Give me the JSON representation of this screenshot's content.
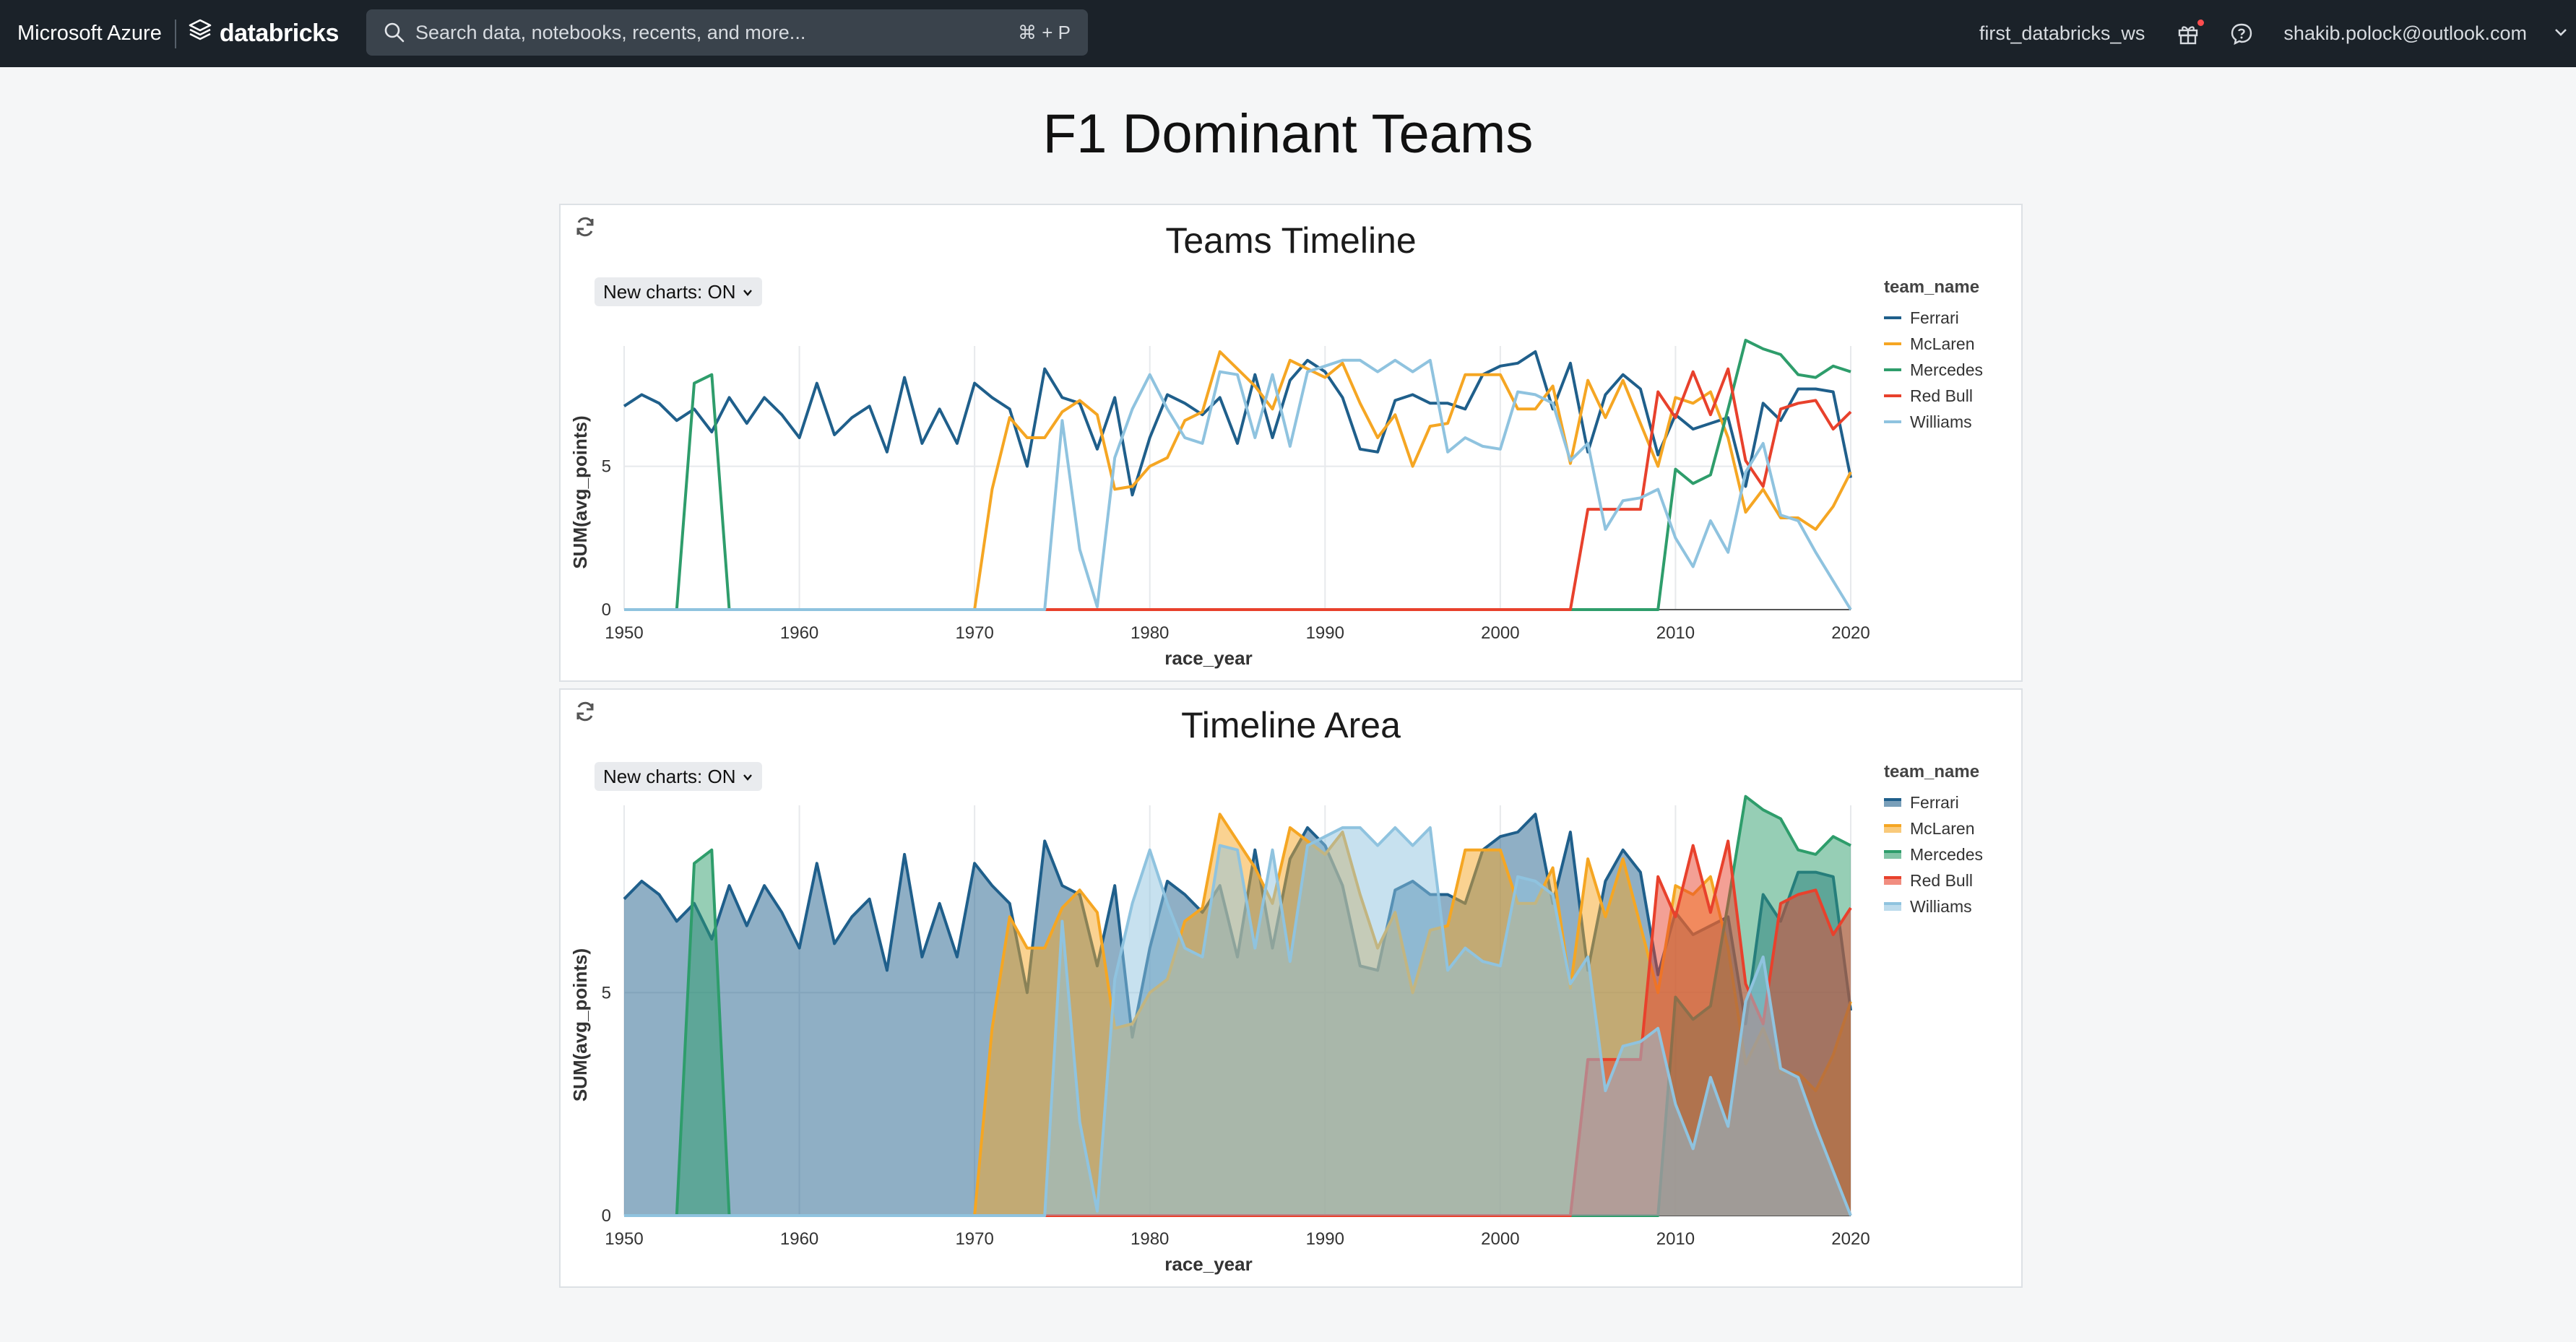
{
  "topbar": {
    "cloud": "Microsoft Azure",
    "product": "databricks",
    "search_placeholder": "Search data, notebooks, recents, and more...",
    "search_shortcut": "⌘ + P",
    "workspace": "first_databricks_ws",
    "user": "shakib.polock@outlook.com",
    "icons": [
      "stack-logo-icon",
      "search-icon",
      "gift-icon",
      "help-chat-icon",
      "chevron-down-icon"
    ]
  },
  "dashboard": {
    "title": "F1 Dominant Teams"
  },
  "widgets": [
    {
      "title": "Teams Timeline",
      "toggle": "New charts: ON"
    },
    {
      "title": "Timeline Area",
      "toggle": "New charts: ON"
    }
  ],
  "colors": {
    "Ferrari": "#1f5f8b",
    "McLaren": "#f5a623",
    "Mercedes": "#2e9d6b",
    "Red Bull": "#e8412c",
    "Williams": "#8fc3df"
  },
  "chart_data": [
    {
      "type": "line",
      "title": "Teams Timeline",
      "xlabel": "race_year",
      "ylabel": "SUM(avg_points)",
      "xlim": [
        1950,
        2020
      ],
      "ylim": [
        0,
        9.2
      ],
      "xticks": [
        "1950",
        "1960",
        "1970",
        "1980",
        "1990",
        "2000",
        "2010",
        "2020"
      ],
      "yticks": [
        "0",
        "5"
      ],
      "legend_title": "team_name",
      "legend_position": "right",
      "grid": true,
      "series": [
        {
          "name": "Ferrari",
          "x": [
            1950,
            1951,
            1952,
            1953,
            1954,
            1955,
            1956,
            1957,
            1958,
            1959,
            1960,
            1961,
            1962,
            1963,
            1964,
            1965,
            1966,
            1967,
            1968,
            1969,
            1970,
            1971,
            1972,
            1973,
            1974,
            1975,
            1976,
            1977,
            1978,
            1979,
            1980,
            1981,
            1982,
            1983,
            1984,
            1985,
            1986,
            1987,
            1988,
            1989,
            1990,
            1991,
            1992,
            1993,
            1994,
            1995,
            1996,
            1997,
            1998,
            1999,
            2000,
            2001,
            2002,
            2003,
            2004,
            2005,
            2006,
            2007,
            2008,
            2009,
            2010,
            2011,
            2012,
            2013,
            2014,
            2015,
            2016,
            2017,
            2018,
            2019,
            2020
          ],
          "values": [
            7.1,
            7.5,
            7.2,
            6.6,
            7.0,
            6.2,
            7.4,
            6.5,
            7.4,
            6.8,
            6.0,
            7.9,
            6.1,
            6.7,
            7.1,
            5.5,
            8.1,
            5.8,
            7.0,
            5.8,
            7.9,
            7.4,
            7.0,
            5.0,
            8.4,
            7.4,
            7.2,
            5.6,
            7.4,
            4.0,
            6.0,
            7.5,
            7.2,
            6.8,
            7.4,
            5.8,
            8.2,
            6.0,
            8.0,
            8.7,
            8.3,
            7.4,
            5.6,
            5.5,
            7.3,
            7.5,
            7.2,
            7.2,
            7.0,
            8.2,
            8.5,
            8.6,
            9.0,
            7.0,
            8.6,
            5.5,
            7.5,
            8.2,
            7.7,
            5.4,
            6.8,
            6.3,
            6.5,
            6.7,
            4.3,
            7.2,
            6.6,
            7.7,
            7.7,
            7.6,
            4.6
          ]
        },
        {
          "name": "McLaren",
          "x": [
            1950,
            1951,
            1952,
            1953,
            1954,
            1955,
            1956,
            1957,
            1958,
            1959,
            1960,
            1961,
            1962,
            1963,
            1964,
            1965,
            1966,
            1967,
            1968,
            1969,
            1970,
            1971,
            1972,
            1973,
            1974,
            1975,
            1976,
            1977,
            1978,
            1979,
            1980,
            1981,
            1982,
            1983,
            1984,
            1985,
            1986,
            1987,
            1988,
            1989,
            1990,
            1991,
            1992,
            1993,
            1994,
            1995,
            1996,
            1997,
            1998,
            1999,
            2000,
            2001,
            2002,
            2003,
            2004,
            2005,
            2006,
            2007,
            2008,
            2009,
            2010,
            2011,
            2012,
            2013,
            2014,
            2015,
            2016,
            2017,
            2018,
            2019,
            2020
          ],
          "values": [
            0,
            0,
            0,
            0,
            0,
            0,
            0,
            0,
            0,
            0,
            0,
            0,
            0,
            0,
            0,
            0,
            0,
            0,
            0,
            0,
            0,
            4.2,
            6.7,
            6.0,
            6.0,
            6.9,
            7.3,
            6.8,
            4.2,
            4.3,
            5.0,
            5.3,
            6.6,
            6.9,
            9.0,
            8.4,
            7.8,
            7.0,
            8.7,
            8.4,
            8.1,
            8.6,
            7.2,
            6.0,
            6.8,
            5.0,
            6.4,
            6.5,
            8.2,
            8.2,
            8.2,
            7.0,
            7.0,
            7.8,
            5.1,
            8.0,
            6.7,
            8.0,
            6.5,
            5.0,
            7.4,
            7.2,
            7.6,
            6.0,
            3.4,
            4.2,
            3.2,
            3.2,
            2.8,
            3.6,
            4.8
          ]
        },
        {
          "name": "Mercedes",
          "x": [
            1950,
            1951,
            1952,
            1953,
            1954,
            1955,
            1956,
            1957,
            1958,
            1959,
            1960,
            1961,
            1962,
            1963,
            1964,
            1965,
            1966,
            1967,
            1968,
            1969,
            1970,
            1971,
            1972,
            1973,
            1974,
            1975,
            1976,
            1977,
            1978,
            1979,
            1980,
            1981,
            1982,
            1983,
            1984,
            1985,
            1986,
            1987,
            1988,
            1989,
            1990,
            1991,
            1992,
            1993,
            1994,
            1995,
            1996,
            1997,
            1998,
            1999,
            2000,
            2001,
            2002,
            2003,
            2004,
            2005,
            2006,
            2007,
            2008,
            2009,
            2010,
            2011,
            2012,
            2013,
            2014,
            2015,
            2016,
            2017,
            2018,
            2019,
            2020
          ],
          "values": [
            0,
            0,
            0,
            0,
            7.9,
            8.2,
            0,
            0,
            0,
            0,
            0,
            0,
            0,
            0,
            0,
            0,
            0,
            0,
            0,
            0,
            0,
            0,
            0,
            0,
            0,
            0,
            0,
            0,
            0,
            0,
            0,
            0,
            0,
            0,
            0,
            0,
            0,
            0,
            0,
            0,
            0,
            0,
            0,
            0,
            0,
            0,
            0,
            0,
            0,
            0,
            0,
            0,
            0,
            0,
            0,
            0,
            0,
            0,
            0,
            0,
            4.9,
            4.4,
            4.7,
            7.0,
            9.4,
            9.1,
            8.9,
            8.2,
            8.1,
            8.5,
            8.3
          ]
        },
        {
          "name": "Red Bull",
          "x": [
            1950,
            1951,
            1952,
            1953,
            1954,
            1955,
            1956,
            1957,
            1958,
            1959,
            1960,
            1961,
            1962,
            1963,
            1964,
            1965,
            1966,
            1967,
            1968,
            1969,
            1970,
            1971,
            1972,
            1973,
            1974,
            1975,
            1976,
            1977,
            1978,
            1979,
            1980,
            1981,
            1982,
            1983,
            1984,
            1985,
            1986,
            1987,
            1988,
            1989,
            1990,
            1991,
            1992,
            1993,
            1994,
            1995,
            1996,
            1997,
            1998,
            1999,
            2000,
            2001,
            2002,
            2003,
            2004,
            2005,
            2006,
            2007,
            2008,
            2009,
            2010,
            2011,
            2012,
            2013,
            2014,
            2015,
            2016,
            2017,
            2018,
            2019,
            2020
          ],
          "values": [
            0,
            0,
            0,
            0,
            0,
            0,
            0,
            0,
            0,
            0,
            0,
            0,
            0,
            0,
            0,
            0,
            0,
            0,
            0,
            0,
            0,
            0,
            0,
            0,
            0,
            0,
            0,
            0,
            0,
            0,
            0,
            0,
            0,
            0,
            0,
            0,
            0,
            0,
            0,
            0,
            0,
            0,
            0,
            0,
            0,
            0,
            0,
            0,
            0,
            0,
            0,
            0,
            0,
            0,
            0,
            3.5,
            3.5,
            3.5,
            3.5,
            7.6,
            6.7,
            8.3,
            6.8,
            8.4,
            5.2,
            4.3,
            7.0,
            7.2,
            7.3,
            6.3,
            6.9
          ]
        },
        {
          "name": "Williams",
          "x": [
            1950,
            1951,
            1952,
            1953,
            1954,
            1955,
            1956,
            1957,
            1958,
            1959,
            1960,
            1961,
            1962,
            1963,
            1964,
            1965,
            1966,
            1967,
            1968,
            1969,
            1970,
            1971,
            1972,
            1973,
            1974,
            1975,
            1976,
            1977,
            1978,
            1979,
            1980,
            1981,
            1982,
            1983,
            1984,
            1985,
            1986,
            1987,
            1988,
            1989,
            1990,
            1991,
            1992,
            1993,
            1994,
            1995,
            1996,
            1997,
            1998,
            1999,
            2000,
            2001,
            2002,
            2003,
            2004,
            2005,
            2006,
            2007,
            2008,
            2009,
            2010,
            2011,
            2012,
            2013,
            2014,
            2015,
            2016,
            2017,
            2018,
            2019,
            2020
          ],
          "values": [
            0,
            0,
            0,
            0,
            0,
            0,
            0,
            0,
            0,
            0,
            0,
            0,
            0,
            0,
            0,
            0,
            0,
            0,
            0,
            0,
            0,
            0,
            0,
            0,
            0,
            6.6,
            2.1,
            0.1,
            5.3,
            7.0,
            8.2,
            7.0,
            6.0,
            5.8,
            8.3,
            8.2,
            6.0,
            8.2,
            5.7,
            8.3,
            8.5,
            8.7,
            8.7,
            8.3,
            8.7,
            8.3,
            8.7,
            5.5,
            6.0,
            5.7,
            5.6,
            7.6,
            7.5,
            7.2,
            5.2,
            5.8,
            2.8,
            3.8,
            3.9,
            4.2,
            2.5,
            1.5,
            3.1,
            2.0,
            4.8,
            5.8,
            3.3,
            3.1,
            2.0,
            1.0,
            0.0
          ]
        }
      ]
    },
    {
      "type": "area",
      "title": "Timeline Area",
      "xlabel": "race_year",
      "ylabel": "SUM(avg_points)",
      "xlim": [
        1950,
        2020
      ],
      "ylim": [
        0,
        9.2
      ],
      "xticks": [
        "1950",
        "1960",
        "1970",
        "1980",
        "1990",
        "2000",
        "2010",
        "2020"
      ],
      "yticks": [
        "0",
        "5"
      ],
      "legend_title": "team_name",
      "legend_position": "right",
      "grid": true,
      "series_ref": "same as Teams Timeline"
    }
  ]
}
